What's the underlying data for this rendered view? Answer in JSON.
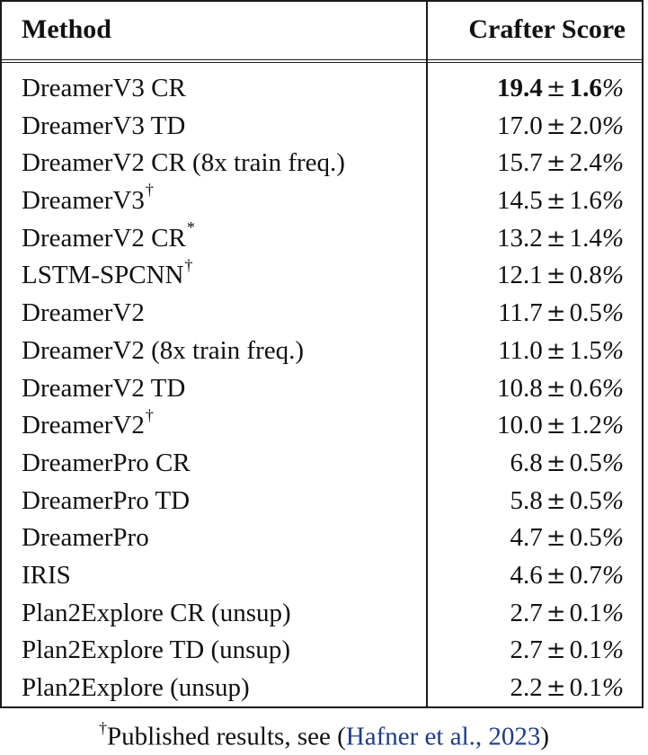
{
  "table": {
    "header": {
      "method": "Method",
      "score": "Crafter Score"
    },
    "rows": [
      {
        "method": "DreamerV3 CR",
        "mark": "",
        "value": "19.4",
        "error": "1.6",
        "best": true
      },
      {
        "method": "DreamerV3 TD",
        "mark": "",
        "value": "17.0",
        "error": "2.0",
        "best": false
      },
      {
        "method": "DreamerV2 CR (8x train freq.)",
        "mark": "",
        "value": "15.7",
        "error": "2.4",
        "best": false
      },
      {
        "method": "DreamerV3",
        "mark": "†",
        "value": "14.5",
        "error": "1.6",
        "best": false
      },
      {
        "method": "DreamerV2 CR",
        "mark": "*",
        "value": "13.2",
        "error": "1.4",
        "best": false
      },
      {
        "method": "LSTM-SPCNN",
        "mark": "†",
        "value": "12.1",
        "error": "0.8",
        "best": false
      },
      {
        "method": "DreamerV2",
        "mark": "",
        "value": "11.7",
        "error": "0.5",
        "best": false
      },
      {
        "method": "DreamerV2 (8x train freq.)",
        "mark": "",
        "value": "11.0",
        "error": "1.5",
        "best": false
      },
      {
        "method": "DreamerV2 TD",
        "mark": "",
        "value": "10.8",
        "error": "0.6",
        "best": false
      },
      {
        "method": "DreamerV2",
        "mark": "†",
        "value": "10.0",
        "error": "1.2",
        "best": false
      },
      {
        "method": "DreamerPro CR",
        "mark": "",
        "value": "6.8",
        "error": "0.5",
        "best": false
      },
      {
        "method": "DreamerPro TD",
        "mark": "",
        "value": "5.8",
        "error": "0.5",
        "best": false
      },
      {
        "method": "DreamerPro",
        "mark": "",
        "value": "4.7",
        "error": "0.5",
        "best": false
      },
      {
        "method": "IRIS",
        "mark": "",
        "value": "4.6",
        "error": "0.7",
        "best": false
      },
      {
        "method": "Plan2Explore CR (unsup)",
        "mark": "",
        "value": "2.7",
        "error": "0.1",
        "best": false
      },
      {
        "method": "Plan2Explore TD (unsup)",
        "mark": "",
        "value": "2.7",
        "error": "0.1",
        "best": false
      },
      {
        "method": "Plan2Explore (unsup)",
        "mark": "",
        "value": "2.2",
        "error": "0.1",
        "best": false
      }
    ],
    "pm_symbol": "±",
    "percent_symbol": "%"
  },
  "footnote": {
    "mark": "†",
    "text": "Published results, see (",
    "citation": "Hafner et al., 2023",
    "close": ")"
  },
  "colors": {
    "text": "#111111",
    "rule": "#1a1a1a",
    "citation_link": "#1f3c88"
  }
}
